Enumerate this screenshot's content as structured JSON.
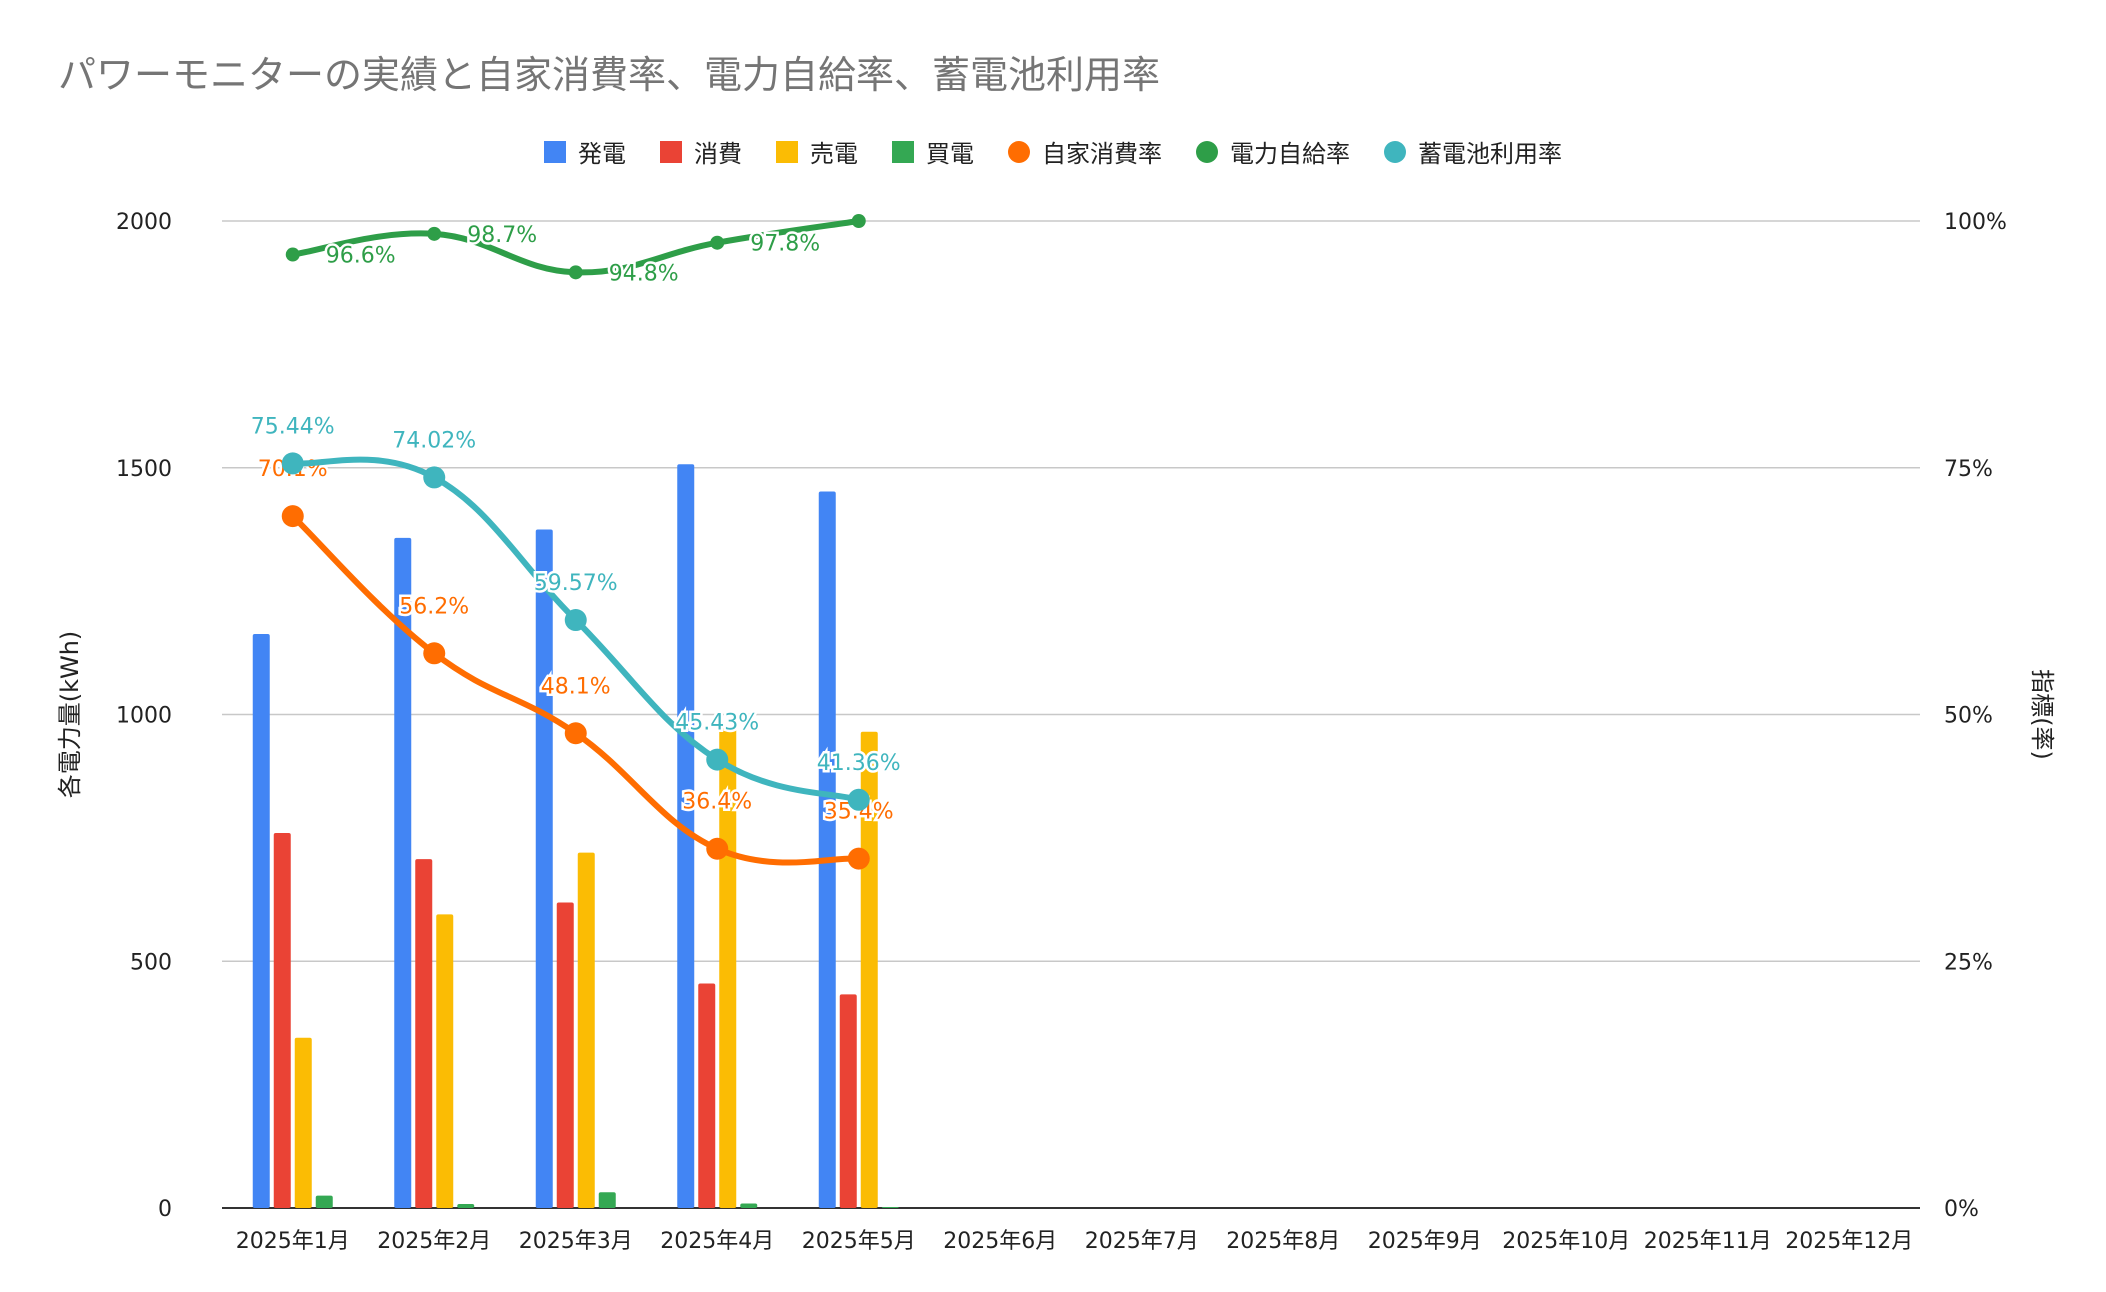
{
  "chart_data": {
    "type": "bar",
    "title": "パワーモニターの実績と自家消費率、電力自給率、蓄電池利用率",
    "categories": [
      "2025年1月",
      "2025年2月",
      "2025年3月",
      "2025年4月",
      "2025年5月",
      "2025年6月",
      "2025年7月",
      "2025年8月",
      "2025年9月",
      "2025年10月",
      "2025年11月",
      "2025年12月"
    ],
    "ylabel": "各電力量(kWh)",
    "y2label": "指標(率)",
    "ylim": [
      0,
      2000
    ],
    "y2lim": [
      0,
      1
    ],
    "yticks": [
      "0",
      "500",
      "1000",
      "1500",
      "2000"
    ],
    "y2ticks": [
      "0%",
      "25%",
      "50%",
      "75%",
      "100%"
    ],
    "grid": true,
    "legend_position": "top",
    "bar_series": [
      {
        "name": "発電",
        "color": "#4285F4",
        "values": [
          1163,
          1358,
          1375,
          1507,
          1452,
          null,
          null,
          null,
          null,
          null,
          null,
          null
        ]
      },
      {
        "name": "消費",
        "color": "#EA4335",
        "values": [
          760,
          707,
          619,
          455,
          433,
          null,
          null,
          null,
          null,
          null,
          null,
          null
        ]
      },
      {
        "name": "売電",
        "color": "#FBBC04",
        "values": [
          345,
          595,
          720,
          975,
          965,
          null,
          null,
          null,
          null,
          null,
          null,
          null
        ]
      },
      {
        "name": "買電",
        "color": "#34A853",
        "values": [
          25,
          8,
          32,
          9,
          2,
          null,
          null,
          null,
          null,
          null,
          null,
          null
        ]
      }
    ],
    "line_series": [
      {
        "name": "自家消費率",
        "color": "#FF6D01",
        "values": [
          0.701,
          0.562,
          0.481,
          0.364,
          0.354
        ],
        "labels": [
          "70.1%",
          "56.2%",
          "48.1%",
          "36.4%",
          "35.4%"
        ]
      },
      {
        "name": "電力自給率",
        "color": "#2E9E48",
        "values": [
          0.966,
          0.987,
          0.948,
          0.978,
          1.0
        ],
        "labels": [
          "96.6%",
          "98.7%",
          "94.8%",
          "97.8%",
          ""
        ]
      },
      {
        "name": "蓄電池利用率",
        "color": "#3FB5BE",
        "values": [
          0.7544,
          0.7402,
          0.5957,
          0.4543,
          0.4136
        ],
        "labels": [
          "75.44%",
          "74.02%",
          "59.57%",
          "45.43%",
          "41.36%"
        ]
      }
    ]
  }
}
